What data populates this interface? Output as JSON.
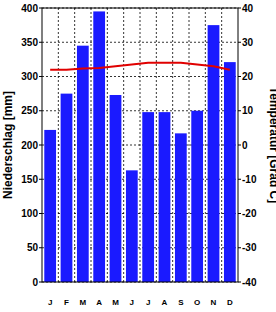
{
  "chart_data": {
    "type": "bar",
    "categories": [
      "J",
      "F",
      "M",
      "A",
      "M",
      "J",
      "J",
      "A",
      "S",
      "O",
      "N",
      "D"
    ],
    "ylabel": "Niederschlag [mm]",
    "y2label": "Temperatur [Grad C]",
    "series": [
      {
        "type": "bar",
        "color": "#1a1aff",
        "values": [
          222,
          275,
          345,
          395,
          273,
          163,
          248,
          248,
          217,
          250,
          375,
          321
        ]
      },
      {
        "type": "line",
        "axis": "y2",
        "color": "#e00000",
        "values": [
          22,
          22,
          22.3,
          22.5,
          23,
          23.5,
          24,
          24,
          24,
          23.5,
          23,
          22
        ]
      }
    ],
    "ylim": [
      0,
      400
    ],
    "yticks": [
      0,
      50,
      100,
      150,
      200,
      250,
      300,
      350,
      400
    ],
    "y2lim": [
      -40,
      40
    ],
    "y2ticks": [
      -40,
      -30,
      -20,
      -10,
      0,
      10,
      20,
      30,
      40
    ],
    "grid": true
  }
}
